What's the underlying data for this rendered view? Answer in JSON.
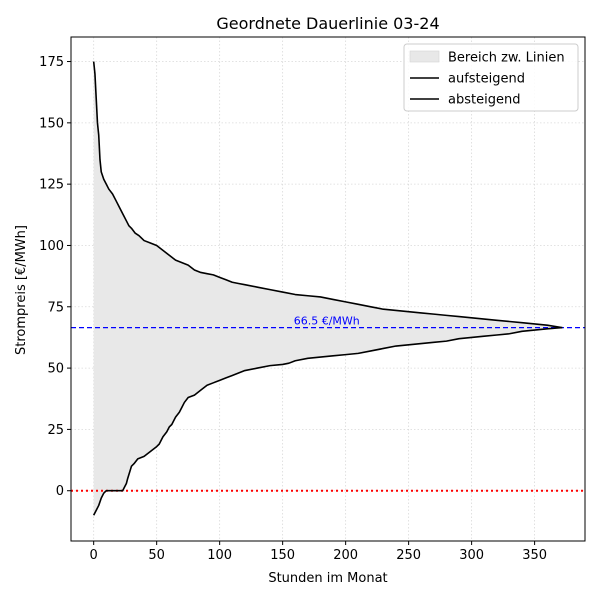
{
  "chart_data": {
    "type": "line",
    "title": "Geordnete Dauerlinie 03-24",
    "xlabel": "Stunden im Monat",
    "ylabel": "Strompreis [€/MWh]",
    "xlim": [
      -18,
      390
    ],
    "ylim": [
      -20.5,
      185
    ],
    "xticks": [
      0,
      50,
      100,
      150,
      200,
      250,
      300,
      350
    ],
    "yticks": [
      0,
      25,
      50,
      75,
      100,
      125,
      150,
      175
    ],
    "grid": true,
    "legend_position": "top-right",
    "legend": [
      "Bereich zw. Linien",
      "aufsteigend",
      "absteigend"
    ],
    "fill": {
      "name": "Bereich zw. Linien",
      "color": "#e8e8e8",
      "between": [
        "absteigend",
        "aufsteigend"
      ]
    },
    "series": [
      {
        "name": "aufsteigend",
        "color": "#000000",
        "x": [
          0,
          2,
          4,
          6,
          8,
          10,
          15,
          20,
          23,
          24,
          26,
          27,
          30,
          32,
          35,
          40,
          45,
          50,
          52,
          55,
          58,
          60,
          62,
          65,
          68,
          70,
          72,
          75,
          80,
          85,
          90,
          95,
          100,
          105,
          110,
          115,
          120,
          130,
          140,
          150,
          155,
          160,
          170,
          180,
          190,
          200,
          210,
          220,
          230,
          240,
          250,
          260,
          270,
          280,
          290,
          300,
          310,
          320,
          330,
          340,
          350,
          360,
          372
        ],
        "y": [
          -10,
          -8,
          -6,
          -3,
          -1,
          0,
          0,
          0,
          0,
          1,
          3,
          5,
          10,
          11,
          13,
          14,
          16,
          18,
          19,
          22,
          24,
          26,
          27,
          30,
          32,
          34,
          36,
          38,
          39,
          41,
          43,
          44,
          45,
          46,
          47,
          48,
          49,
          50,
          51,
          51.5,
          52,
          53,
          54,
          54.5,
          55,
          55.5,
          56,
          57,
          58,
          59,
          59.5,
          60,
          60.5,
          61,
          62,
          62.5,
          63,
          63.5,
          64,
          65,
          65.5,
          66,
          66.5
        ]
      },
      {
        "name": "absteigend",
        "color": "#000000",
        "x": [
          0,
          1,
          2,
          3,
          4,
          5,
          6,
          8,
          10,
          12,
          15,
          18,
          20,
          23,
          26,
          28,
          30,
          33,
          36,
          40,
          45,
          50,
          55,
          60,
          65,
          70,
          75,
          80,
          85,
          90,
          95,
          100,
          105,
          110,
          115,
          120,
          130,
          140,
          150,
          160,
          170,
          180,
          190,
          200,
          210,
          220,
          230,
          240,
          250,
          260,
          270,
          280,
          290,
          300,
          310,
          320,
          330,
          340,
          350,
          360,
          372
        ],
        "y": [
          175,
          170,
          160,
          150,
          145,
          135,
          130,
          127,
          125,
          123,
          121,
          118,
          116,
          113,
          110,
          108,
          107,
          105,
          104,
          102,
          101,
          100,
          98,
          96,
          94,
          93,
          92,
          90,
          89,
          88.5,
          88,
          87,
          86,
          85,
          84.5,
          84,
          83,
          82,
          81,
          80,
          79.5,
          79,
          78,
          77,
          76,
          75,
          74,
          73.5,
          73,
          72.5,
          72,
          71.5,
          71,
          70.5,
          70,
          69.5,
          69,
          68.5,
          68,
          67.5,
          66.5
        ]
      }
    ],
    "reference_lines": [
      {
        "orientation": "horizontal",
        "y": 66.5,
        "style": "dashed",
        "color": "#0000ff",
        "label": "66.5 €/MWh"
      },
      {
        "orientation": "horizontal",
        "y": 0,
        "style": "dotted",
        "color": "#ff0000",
        "label": ""
      }
    ]
  }
}
